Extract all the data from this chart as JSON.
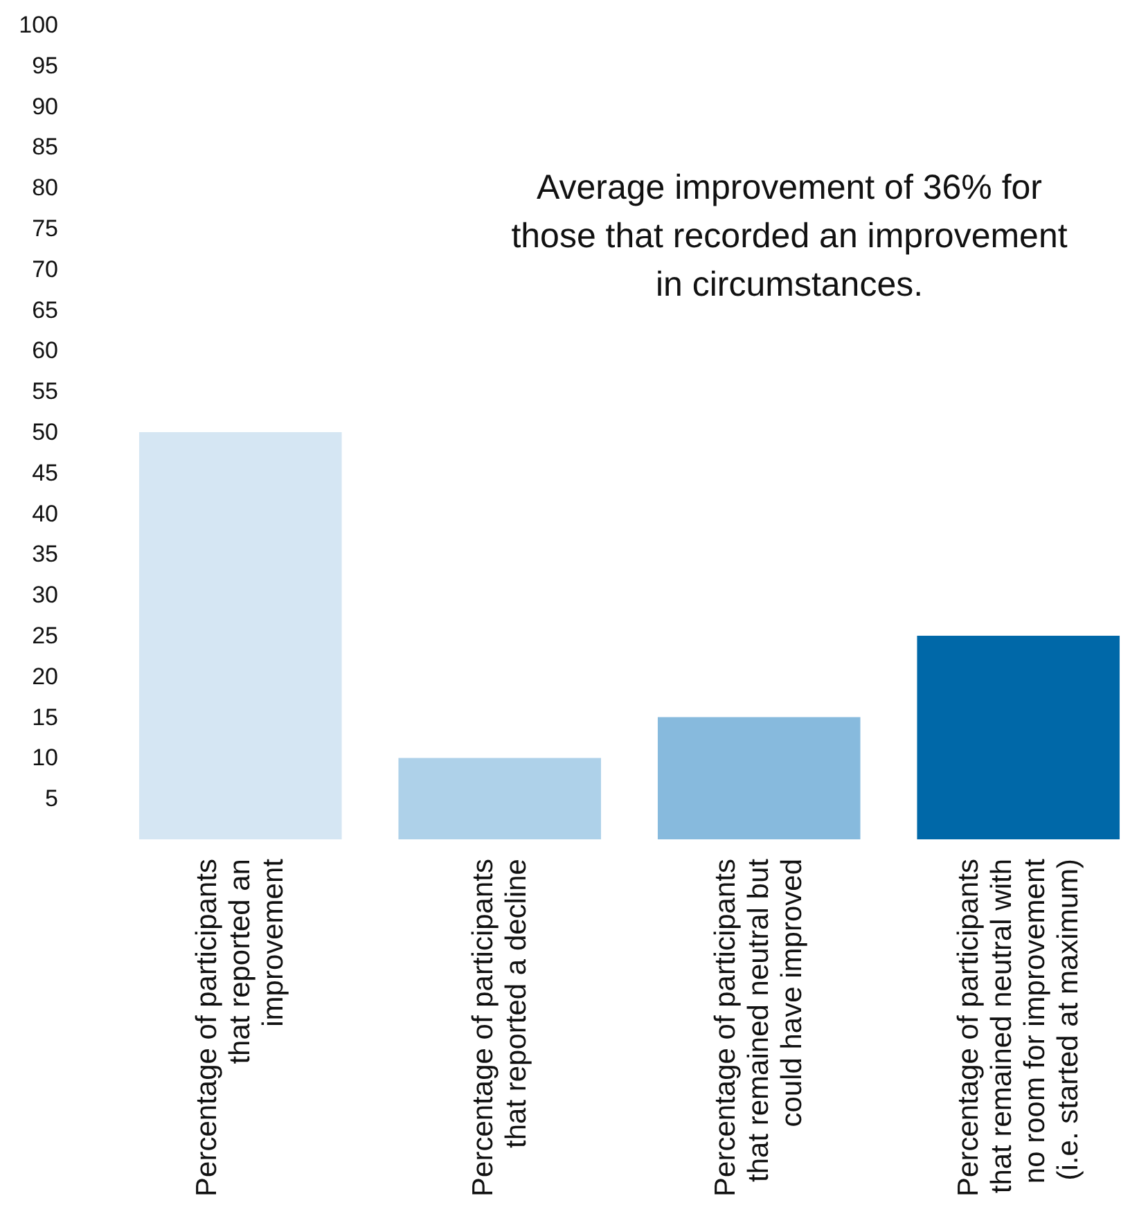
{
  "chart_data": {
    "type": "bar",
    "categories": [
      "Percentage of participants\nthat reported an\nimprovement",
      "Percentage of participants\nthat reported a decline",
      "Percentage of participants\nthat remained neutral but\ncould have improved",
      "Percentage of participants\nthat remained neutral with\nno room for improvement\n(i.e. started at maximum)"
    ],
    "values": [
      50,
      10,
      15,
      25
    ],
    "colors": [
      "#d5e6f3",
      "#aed1e9",
      "#87badd",
      "#0068a8"
    ],
    "ylim": [
      0,
      100
    ],
    "yticks": [
      5,
      10,
      15,
      20,
      25,
      30,
      35,
      40,
      45,
      50,
      55,
      60,
      65,
      70,
      75,
      80,
      85,
      90,
      95,
      100
    ],
    "annotations": [
      "Average improvement of 36% for\nthose that recorded an improvement\nin circumstances."
    ]
  }
}
